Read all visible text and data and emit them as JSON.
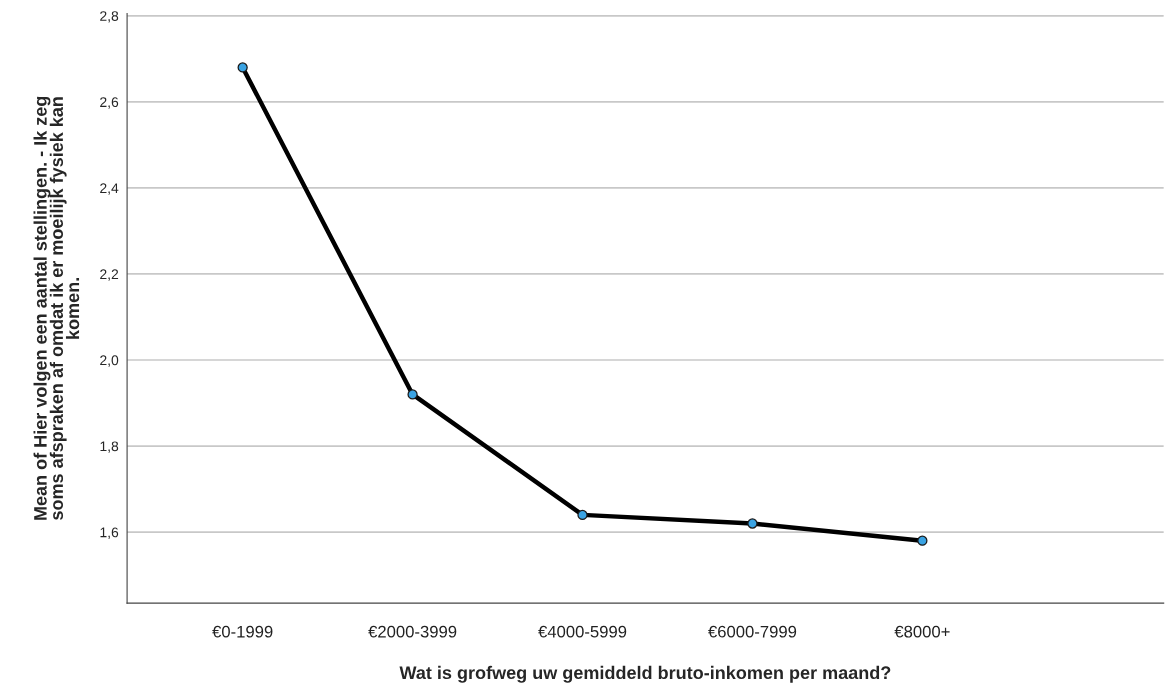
{
  "chart_data": {
    "type": "line",
    "xlabel": "Wat is grofweg uw gemiddeld bruto-inkomen per maand?",
    "ylabel": "Mean of Hier volgen een aantal stellingen. - Ik zeg\nsoms afspraken af omdat ik er moeilijk fysiek kan\nkomen.",
    "categories": [
      "€0-1999",
      "€2000-3999",
      "€4000-5999",
      "€6000-7999",
      "€8000+"
    ],
    "series": [
      {
        "color": "#000000",
        "values": [
          2.68,
          1.92,
          1.64,
          1.62,
          1.58
        ]
      }
    ],
    "ylim": [
      1.435,
      2.805
    ],
    "yticks": [
      {
        "value": 1.6,
        "label": "1,6"
      },
      {
        "value": 1.8,
        "label": "1,8"
      },
      {
        "value": 2.0,
        "label": "2,0"
      },
      {
        "value": 2.2,
        "label": "2,2"
      },
      {
        "value": 2.4,
        "label": "2,4"
      },
      {
        "value": 2.6,
        "label": "2,6"
      },
      {
        "value": 2.8,
        "label": "2,8"
      }
    ],
    "grid": "y",
    "marker": "circle",
    "legend": false
  }
}
